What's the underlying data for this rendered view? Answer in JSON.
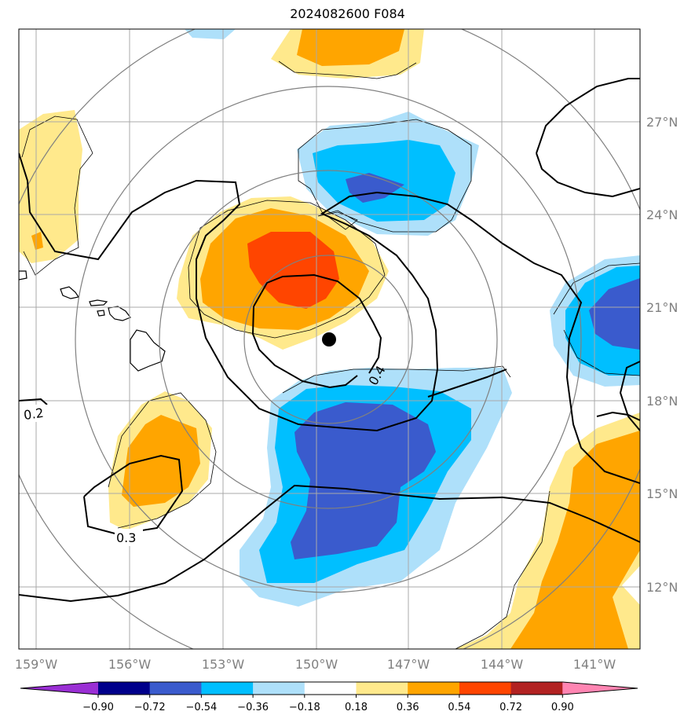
{
  "title": "2024082600 F084",
  "map": {
    "lon_ticks": [
      "159°W",
      "156°W",
      "153°W",
      "150°W",
      "147°W",
      "144°W",
      "141°W"
    ],
    "lat_ticks": [
      "27°N",
      "24°N",
      "21°N",
      "18°N",
      "15°N",
      "12°N"
    ],
    "contour_labels": [
      "0.2",
      "0.3",
      "0.4"
    ],
    "storm_center": {
      "lon": -149.6,
      "lat": 19.9
    }
  },
  "colorbar": {
    "ticks": [
      "−0.90",
      "−0.72",
      "−0.54",
      "−0.36",
      "−0.18",
      "0.18",
      "0.36",
      "0.54",
      "0.72",
      "0.90"
    ],
    "colors": [
      "#9a2fd4",
      "#00008b",
      "#3a5bcd",
      "#00bfff",
      "#aee0fa",
      "#ffffff",
      "#ffe98c",
      "#ffa500",
      "#ff4500",
      "#b22222",
      "#ff85b2"
    ]
  },
  "colors": {
    "lt_yellow": "#ffe98c",
    "orange": "#ffa500",
    "red_orange": "#ff4500",
    "lt_blue": "#aee0fa",
    "blue": "#00bfff",
    "royal_blue": "#3a5bcd",
    "grid": "#a9a9a9",
    "rings": "#808080"
  }
}
